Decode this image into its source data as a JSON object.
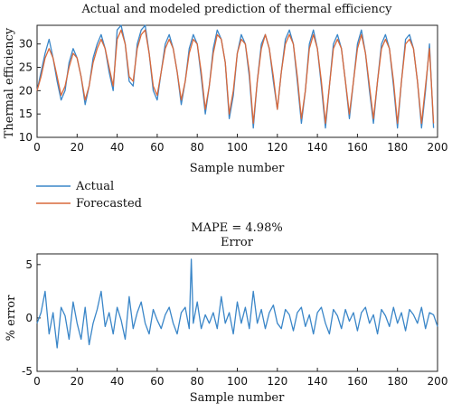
{
  "chart_data": [
    {
      "type": "line",
      "title": "Actual and modeled prediction of thermal efficiency",
      "xlabel": "Sample number",
      "ylabel": "Thermal efficiency",
      "xlim": [
        0,
        200
      ],
      "ylim": [
        10,
        34
      ],
      "xticks": [
        0,
        20,
        40,
        60,
        80,
        100,
        120,
        140,
        160,
        180,
        200
      ],
      "yticks": [
        10,
        15,
        20,
        25,
        30
      ],
      "legend_position": "below-left",
      "series": [
        {
          "name": "Actual",
          "color": "#3a86c8",
          "x": [
            0,
            2,
            4,
            6,
            8,
            10,
            12,
            14,
            16,
            18,
            20,
            22,
            24,
            26,
            28,
            30,
            32,
            34,
            36,
            38,
            40,
            42,
            44,
            46,
            48,
            50,
            52,
            54,
            56,
            58,
            60,
            62,
            64,
            66,
            68,
            70,
            72,
            74,
            76,
            78,
            80,
            82,
            84,
            86,
            88,
            90,
            92,
            94,
            96,
            98,
            100,
            102,
            104,
            106,
            108,
            110,
            112,
            114,
            116,
            118,
            120,
            122,
            124,
            126,
            128,
            130,
            132,
            134,
            136,
            138,
            140,
            142,
            144,
            146,
            148,
            150,
            152,
            154,
            156,
            158,
            160,
            162,
            164,
            166,
            168,
            170,
            172,
            174,
            176,
            178,
            180,
            182,
            184,
            186,
            188,
            190,
            192,
            194,
            196,
            198
          ],
          "values": [
            20,
            24,
            28,
            31,
            27,
            22,
            18,
            20,
            26,
            29,
            27,
            23,
            17,
            21,
            27,
            30,
            32,
            29,
            24,
            20,
            33,
            34,
            30,
            22,
            21,
            30,
            33,
            34,
            28,
            20,
            18,
            24,
            30,
            32,
            29,
            24,
            17,
            22,
            29,
            32,
            30,
            23,
            15,
            21,
            29,
            33,
            31,
            26,
            14,
            19,
            28,
            32,
            30,
            23,
            12,
            22,
            30,
            32,
            29,
            22,
            16,
            24,
            31,
            33,
            30,
            22,
            13,
            20,
            30,
            33,
            29,
            21,
            12,
            21,
            30,
            32,
            29,
            22,
            14,
            22,
            30,
            33,
            28,
            20,
            13,
            22,
            30,
            32,
            29,
            21,
            12,
            22,
            31,
            32,
            29,
            22,
            12,
            20,
            30,
            12
          ]
        },
        {
          "name": "Forecasted",
          "color": "#d9683a",
          "x": [
            0,
            2,
            4,
            6,
            8,
            10,
            12,
            14,
            16,
            18,
            20,
            22,
            24,
            26,
            28,
            30,
            32,
            34,
            36,
            38,
            40,
            42,
            44,
            46,
            48,
            50,
            52,
            54,
            56,
            58,
            60,
            62,
            64,
            66,
            68,
            70,
            72,
            74,
            76,
            78,
            80,
            82,
            84,
            86,
            88,
            90,
            92,
            94,
            96,
            98,
            100,
            102,
            104,
            106,
            108,
            110,
            112,
            114,
            116,
            118,
            120,
            122,
            124,
            126,
            128,
            130,
            132,
            134,
            136,
            138,
            140,
            142,
            144,
            146,
            148,
            150,
            152,
            154,
            156,
            158,
            160,
            162,
            164,
            166,
            168,
            170,
            172,
            174,
            176,
            178,
            180,
            182,
            184,
            186,
            188,
            190,
            192,
            194,
            196,
            198
          ],
          "values": [
            20,
            23,
            27,
            29,
            27,
            23,
            19,
            21,
            25,
            28,
            27,
            23,
            18,
            21,
            26,
            29,
            31,
            29,
            25,
            21,
            31,
            33,
            30,
            23,
            22,
            29,
            32,
            33,
            28,
            21,
            19,
            24,
            29,
            31,
            29,
            24,
            18,
            22,
            28,
            31,
            30,
            24,
            16,
            21,
            28,
            32,
            31,
            26,
            15,
            20,
            28,
            31,
            30,
            24,
            13,
            22,
            29,
            32,
            29,
            23,
            16,
            24,
            30,
            32,
            30,
            23,
            14,
            20,
            29,
            32,
            29,
            22,
            13,
            21,
            29,
            31,
            29,
            22,
            15,
            22,
            29,
            32,
            28,
            21,
            14,
            22,
            29,
            31,
            29,
            22,
            13,
            22,
            30,
            31,
            29,
            22,
            13,
            21,
            29,
            13
          ]
        }
      ]
    },
    {
      "type": "line",
      "title": "MAPE = 4.98%",
      "subtitle": "Error",
      "xlabel": "Sample number",
      "ylabel": "% error",
      "xlim": [
        0,
        200
      ],
      "ylim": [
        -5,
        6
      ],
      "xticks": [
        0,
        20,
        40,
        60,
        80,
        100,
        120,
        140,
        160,
        180,
        200
      ],
      "yticks": [
        -5,
        0,
        5
      ],
      "series": [
        {
          "color": "#3a86c8",
          "x": [
            0,
            2,
            4,
            6,
            8,
            10,
            12,
            14,
            16,
            18,
            20,
            22,
            24,
            26,
            28,
            30,
            32,
            34,
            36,
            38,
            40,
            42,
            44,
            46,
            48,
            50,
            52,
            54,
            56,
            58,
            60,
            62,
            64,
            66,
            68,
            70,
            72,
            74,
            76,
            77,
            78,
            80,
            82,
            84,
            86,
            88,
            90,
            92,
            94,
            96,
            98,
            100,
            102,
            104,
            106,
            108,
            110,
            112,
            114,
            116,
            118,
            120,
            122,
            124,
            126,
            128,
            130,
            132,
            134,
            136,
            138,
            140,
            142,
            144,
            146,
            148,
            150,
            152,
            154,
            156,
            158,
            160,
            162,
            164,
            166,
            168,
            170,
            172,
            174,
            176,
            178,
            180,
            182,
            184,
            186,
            188,
            190,
            192,
            194,
            196,
            198,
            200
          ],
          "values": [
            -0.5,
            0.5,
            2.5,
            -1.5,
            0.5,
            -2.8,
            1,
            0.2,
            -2,
            1.5,
            -0.5,
            -2,
            1,
            -2.5,
            -0.5,
            0.8,
            2.5,
            -0.8,
            0.5,
            -1.5,
            1,
            -0.2,
            -2,
            2,
            -1,
            0.5,
            1.5,
            -0.5,
            -1.5,
            0.8,
            -0.2,
            -1,
            0.3,
            1,
            -0.5,
            -1.5,
            0.5,
            1,
            -1,
            5.5,
            -0.5,
            1.5,
            -1,
            0.3,
            -0.5,
            0.5,
            -1,
            2,
            -0.5,
            0.5,
            -1.5,
            1.5,
            -0.5,
            1,
            -1,
            2.5,
            -0.5,
            0.8,
            -1,
            0.5,
            1.2,
            -0.5,
            -1,
            0.8,
            0.3,
            -1.2,
            0.5,
            1,
            -0.8,
            0.3,
            -1.5,
            0.5,
            1,
            -0.5,
            -1.5,
            0.8,
            0.2,
            -1,
            0.8,
            -0.3,
            0.5,
            -1.2,
            0.5,
            1,
            -0.5,
            0.3,
            -1.5,
            0.8,
            0.2,
            -0.8,
            1,
            -0.5,
            0.5,
            -1.2,
            0.8,
            0.3,
            -0.5,
            1,
            -1,
            0.5,
            0.3,
            -0.8
          ]
        }
      ]
    }
  ]
}
